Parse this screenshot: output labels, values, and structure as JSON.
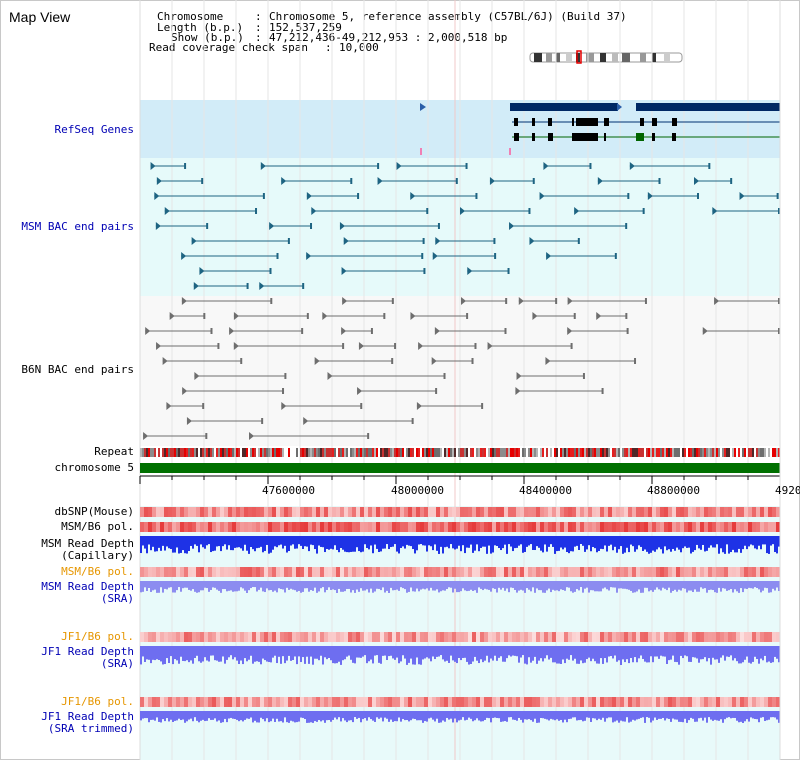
{
  "app_title": "Map View",
  "header": {
    "chromosome_key": "Chromosome",
    "chromosome_value": "Chromosome 5, reference assembly (C57BL/6J) (Build 37)",
    "length_key": "Length (b.p.)",
    "length_value": "152,537,259",
    "show_key": "Show (b.p.)",
    "show_value": "47,212,436-49,212,953 : 2,000,518 bp",
    "coverage_key": "Read coverage check span",
    "coverage_value": "10,000",
    "separator": ":"
  },
  "tracks": {
    "refseq": "RefSeq Genes",
    "msm_bac": "MSM BAC end pairs",
    "b6n_bac": "B6N BAC end pairs",
    "repeat": "Repeat",
    "chromosome": "chromosome 5",
    "dbsnp": "dbSNP(Mouse)",
    "msm_b6_pol": "MSM/B6 pol.",
    "msm_depth_cap_1": "MSM Read Depth",
    "msm_depth_cap_2": "(Capillary)",
    "msm_b6_pol_2": "MSM/B6 pol.",
    "msm_depth_sra_1": "MSM Read Depth",
    "msm_depth_sra_2": "(SRA)",
    "jf1_b6_pol": "JF1/B6 pol.",
    "jf1_depth_sra_1": "JF1 Read Depth",
    "jf1_depth_sra_2": "(SRA)",
    "jf1_b6_pol_2": "JF1/B6 pol.",
    "jf1_depth_trim_1": "JF1 Read Depth",
    "jf1_depth_trim_2": "(SRA trimmed)"
  },
  "axis": {
    "ticks": [
      "47600000",
      "48000000",
      "48400000",
      "48800000",
      "4920"
    ]
  },
  "colors": {
    "refseq_bg": "#d2ecf8",
    "msm_bg": "#e6fafa",
    "b6n_bg": "#f8f8f8",
    "msm_feature": "#1e6482",
    "b6n_feature": "#6e6e6e",
    "gene_dark": "#002864",
    "gene_green": "#006400",
    "chromosome_bar": "#007000",
    "depth_blue": "#1e32e6",
    "depth_sra": "#8c8cf0",
    "label_blue": "#0000b4",
    "label_orange": "#e69600"
  }
}
